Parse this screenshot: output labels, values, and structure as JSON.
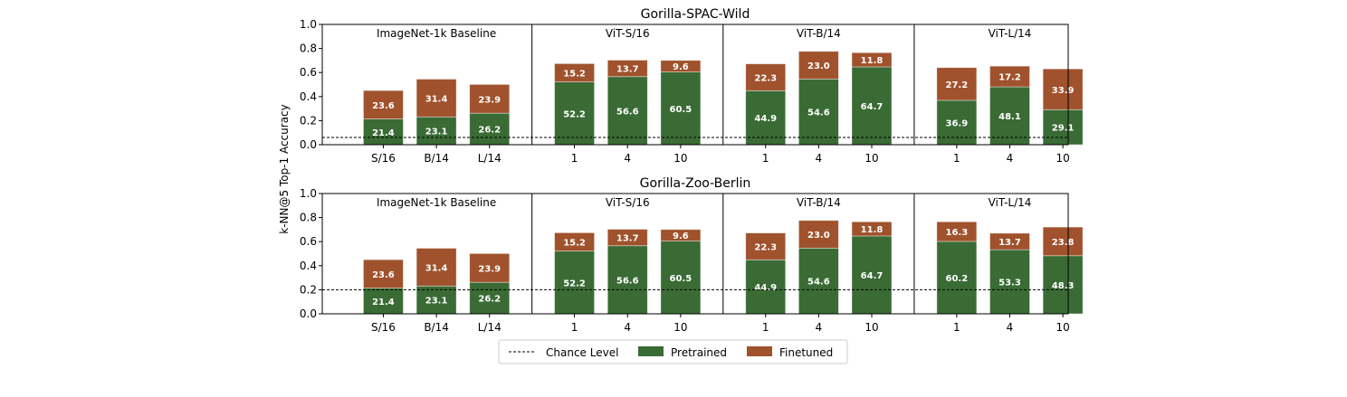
{
  "chart_data": [
    {
      "type": "bar",
      "stacked": true,
      "title": "Gorilla-SPAC-Wild",
      "ylabel": "k-NN@5 Top-1 Accuracy",
      "ylim": [
        0,
        1.0
      ],
      "yticks": [
        "0.0",
        "0.2",
        "0.4",
        "0.6",
        "0.8",
        "1.0"
      ],
      "chance_level": 0.06,
      "groups": [
        {
          "label": "ImageNet-1k Baseline",
          "categories": [
            "S/16",
            "B/14",
            "L/14"
          ],
          "pretrained": [
            21.4,
            23.1,
            26.2
          ],
          "finetuned": [
            23.6,
            31.4,
            23.9
          ]
        },
        {
          "label": "ViT-S/16",
          "categories": [
            "1",
            "4",
            "10"
          ],
          "pretrained": [
            52.2,
            56.6,
            60.5
          ],
          "finetuned": [
            15.2,
            13.7,
            9.6
          ]
        },
        {
          "label": "ViT-B/14",
          "categories": [
            "1",
            "4",
            "10"
          ],
          "pretrained": [
            44.9,
            54.6,
            64.7
          ],
          "finetuned": [
            22.3,
            23.0,
            11.8
          ]
        },
        {
          "label": "ViT-L/14",
          "categories": [
            "1",
            "4",
            "10"
          ],
          "pretrained": [
            36.9,
            48.1,
            29.1
          ],
          "finetuned": [
            27.2,
            17.2,
            33.9
          ]
        }
      ]
    },
    {
      "type": "bar",
      "stacked": true,
      "title": "Gorilla-Zoo-Berlin",
      "ylabel": "k-NN@5 Top-1 Accuracy",
      "ylim": [
        0,
        1.0
      ],
      "yticks": [
        "0.0",
        "0.2",
        "0.4",
        "0.6",
        "0.8",
        "1.0"
      ],
      "chance_level": 0.2,
      "groups": [
        {
          "label": "ImageNet-1k Baseline",
          "categories": [
            "S/16",
            "B/14",
            "L/14"
          ],
          "pretrained": [
            21.4,
            23.1,
            26.2
          ],
          "finetuned": [
            23.6,
            31.4,
            23.9
          ]
        },
        {
          "label": "ViT-S/16",
          "categories": [
            "1",
            "4",
            "10"
          ],
          "pretrained": [
            52.2,
            56.6,
            60.5
          ],
          "finetuned": [
            15.2,
            13.7,
            9.6
          ]
        },
        {
          "label": "ViT-B/14",
          "categories": [
            "1",
            "4",
            "10"
          ],
          "pretrained": [
            44.9,
            54.6,
            64.7
          ],
          "finetuned": [
            22.3,
            23.0,
            11.8
          ]
        },
        {
          "label": "ViT-L/14",
          "categories": [
            "1",
            "4",
            "10"
          ],
          "pretrained": [
            60.2,
            53.3,
            48.3
          ],
          "finetuned": [
            16.3,
            13.7,
            23.8
          ]
        }
      ]
    }
  ],
  "legend": {
    "placement": "bottom-center",
    "entries": [
      {
        "label": "Chance Level",
        "style": "dashed-line",
        "color": "#000000"
      },
      {
        "label": "Pretrained",
        "color": "#3a6b35"
      },
      {
        "label": "Finetuned",
        "color": "#a0522d"
      }
    ]
  },
  "colors": {
    "pretrained": "#3a6b35",
    "finetuned": "#a0522d"
  }
}
